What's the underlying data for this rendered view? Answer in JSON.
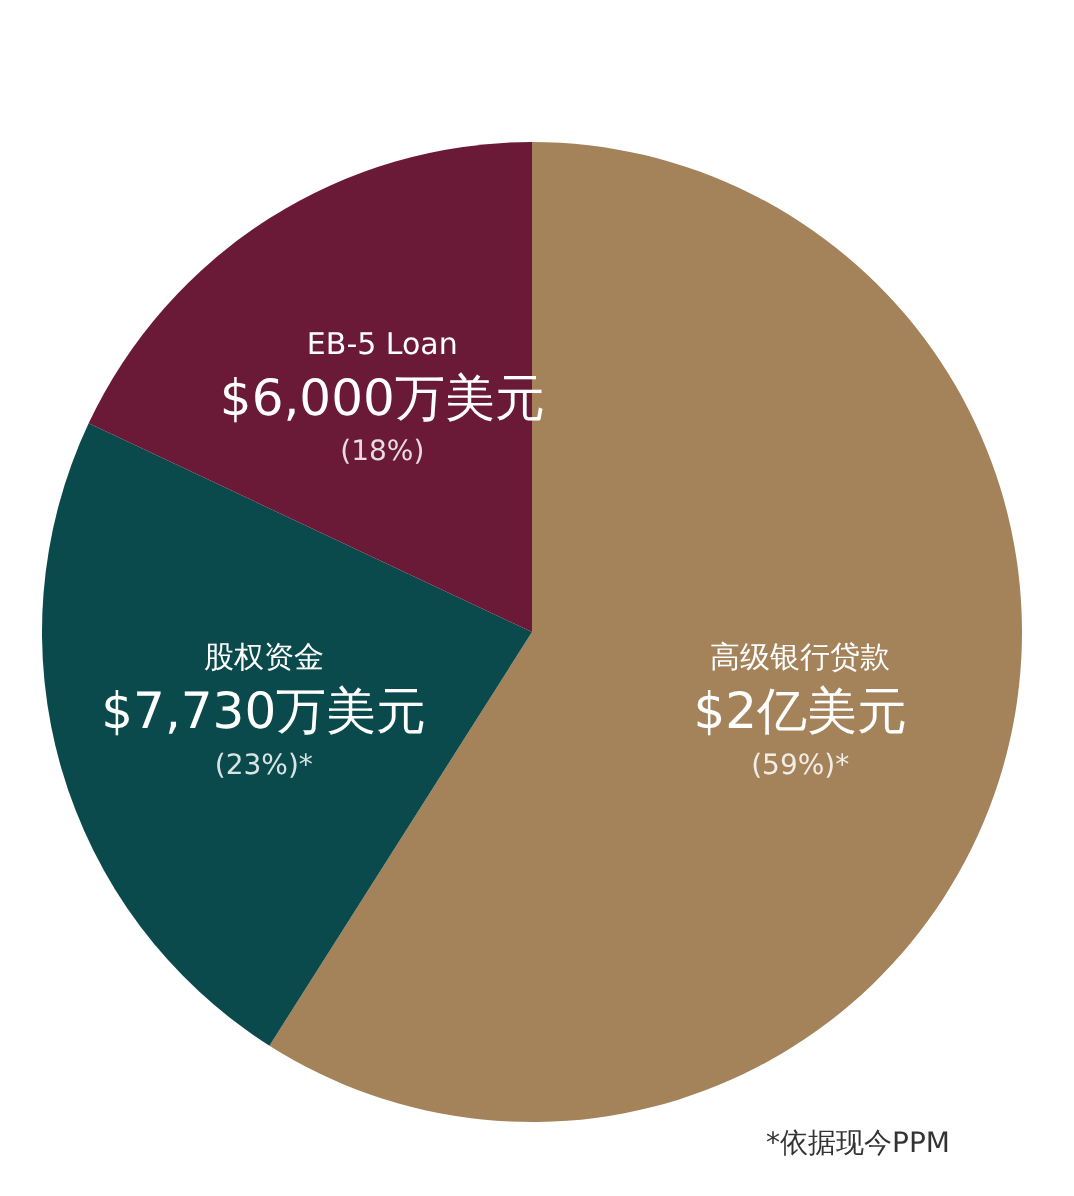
{
  "chart_data": {
    "type": "pie",
    "categories": [
      "高级银行贷款",
      "股权资金",
      "EB-5 Loan"
    ],
    "values": [
      59,
      23,
      18
    ],
    "colors": [
      "#a5835a",
      "#0b4a4c",
      "#6a1a36"
    ],
    "value_labels": [
      "$2亿美元\n(59%)*",
      "$7,730万美元\n(23%)*",
      "$6,000万美元\n(18%)"
    ],
    "annotations": [
      "*依据现今PPM"
    ]
  }
}
